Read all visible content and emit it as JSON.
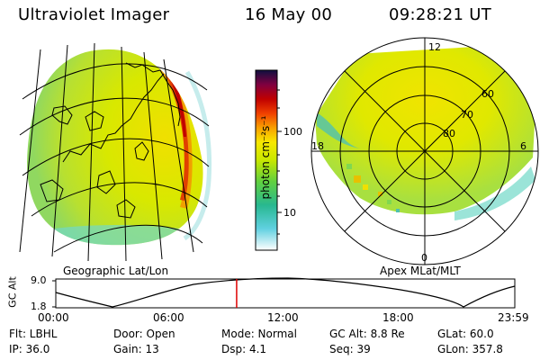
{
  "header": {
    "instrument": "Ultraviolet Imager",
    "date": "16 May 00",
    "time": "09:28:21 UT"
  },
  "colorbar": {
    "unit_label": "photon cm⁻²s⁻¹",
    "ticks": [
      "100",
      "10"
    ]
  },
  "left_panel": {
    "caption": "Geographic Lat/Lon"
  },
  "right_panel": {
    "caption": "Apex MLat/MLT",
    "mlt_labels": {
      "top": "12",
      "left": "18",
      "right": "6",
      "bottom": "0"
    },
    "lat_labels": [
      "60",
      "70",
      "80"
    ]
  },
  "altitude_plot": {
    "ylabel": "GC Alt",
    "ytick_top": "9.0",
    "ytick_bottom": "1.8",
    "xticks": [
      "00:00",
      "06:00",
      "12:00",
      "18:00",
      "23:59"
    ],
    "current_time_fraction": 0.394
  },
  "info_grid": {
    "flt": "Flt: LBHL",
    "ip": "IP: 36.0",
    "door": "Door: Open",
    "gain": "Gain: 13",
    "mode": "Mode: Normal",
    "dsp": "Dsp:    4.1",
    "gc_alt": "GC Alt: 8.8 Re",
    "seq": "Seq: 39",
    "glat": "GLat:  60.0",
    "glon": "GLon: 357.8"
  },
  "colors": {
    "plot_line": "#000000",
    "cursor": "#dd0000"
  }
}
